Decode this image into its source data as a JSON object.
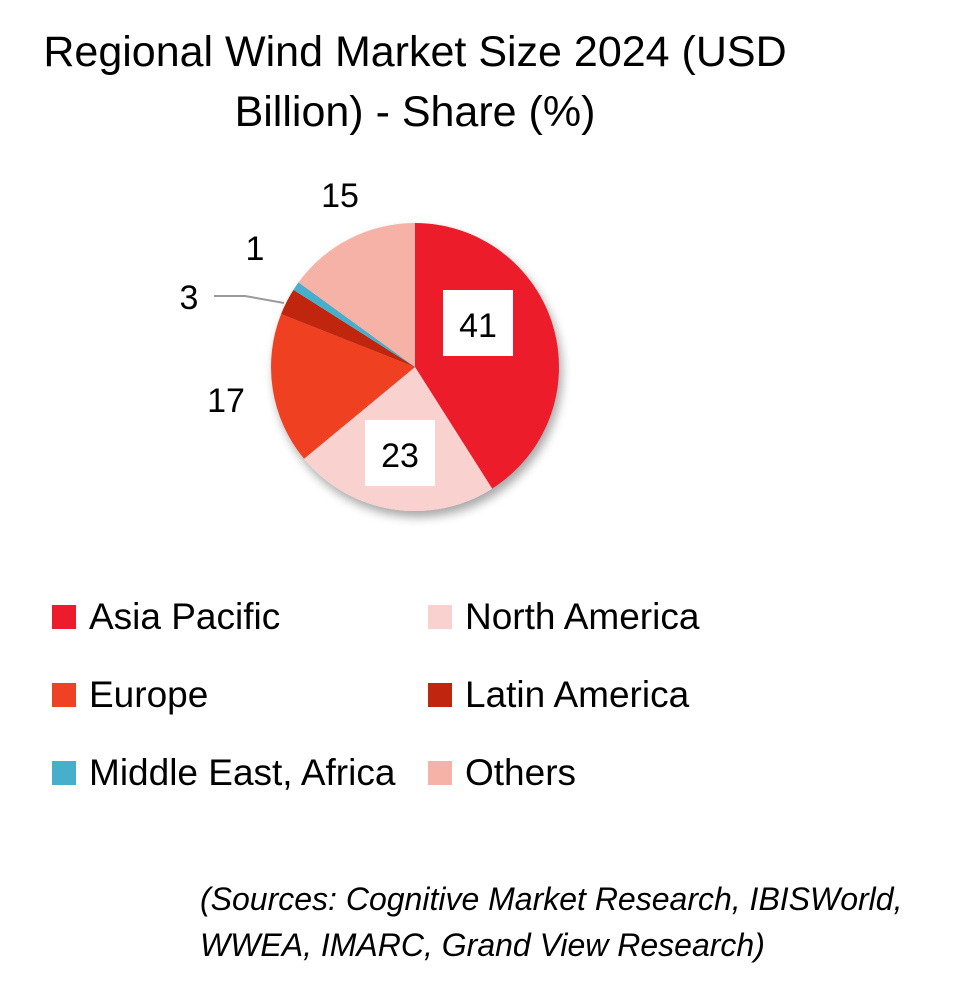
{
  "title": "Regional Wind Market Size 2024 (USD Billion) - Share (%)",
  "chart_data": {
    "type": "pie",
    "title": "Regional Wind Market Size 2024 (USD Billion) - Share (%)",
    "categories": [
      "Asia Pacific",
      "North America",
      "Europe",
      "Latin America",
      "Middle East, Africa",
      "Others"
    ],
    "values": [
      41,
      23,
      17,
      3,
      1,
      15
    ],
    "data_labels": [
      "41",
      "23",
      "17",
      "3",
      "1",
      "15"
    ],
    "colors": [
      "#ED1C2C",
      "#F9D2D0",
      "#EF4123",
      "#C0260F",
      "#47AECB",
      "#F6B2A7"
    ],
    "legend_position": "bottom"
  },
  "legend": [
    {
      "label": "Asia Pacific",
      "color": "#ED1C2C"
    },
    {
      "label": "North America",
      "color": "#F9D2D0"
    },
    {
      "label": "Europe",
      "color": "#EF4123"
    },
    {
      "label": "Latin America",
      "color": "#C0260F"
    },
    {
      "label": "Middle East, Africa",
      "color": "#47AECB"
    },
    {
      "label": "Others",
      "color": "#F6B2A7"
    }
  ],
  "sources": "(Sources: Cognitive Market Research, IBISWorld, WWEA, IMARC, Grand View Research)"
}
